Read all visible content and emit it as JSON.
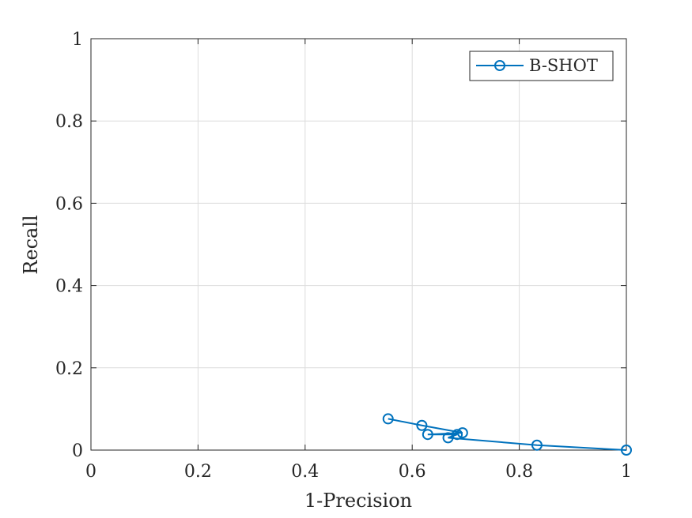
{
  "chart_data": {
    "type": "line",
    "title": "",
    "xlabel": "1-Precision",
    "ylabel": "Recall",
    "xlim": [
      0,
      1
    ],
    "ylim": [
      0,
      1
    ],
    "grid": true,
    "legend_position": "top-right",
    "xticks": [
      0,
      0.2,
      0.4,
      0.6,
      0.8,
      1
    ],
    "yticks": [
      0,
      0.2,
      0.4,
      0.6,
      0.8,
      1
    ],
    "xtick_labels": [
      "0",
      "0.2",
      "0.4",
      "0.6",
      "0.8",
      "1"
    ],
    "ytick_labels": [
      "0",
      "0.2",
      "0.4",
      "0.6",
      "0.8",
      "1"
    ],
    "series": [
      {
        "name": "B-SHOT",
        "color": "#0072BD",
        "marker": "circle",
        "x": [
          0.555,
          0.618,
          0.694,
          0.629,
          0.684,
          0.667,
          0.833,
          1.0
        ],
        "y": [
          0.076,
          0.06,
          0.042,
          0.038,
          0.038,
          0.03,
          0.012,
          0.0
        ]
      }
    ]
  }
}
